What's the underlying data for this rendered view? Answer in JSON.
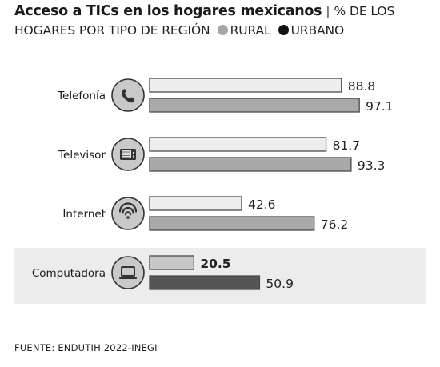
{
  "header": {
    "title": "Acceso a TICs en los hogares mexicanos",
    "separator": "|",
    "subtitle_line1": "% DE LOS",
    "subtitle_line2": "HOGARES POR TIPO DE REGIÓN",
    "legend": [
      {
        "label": "RURAL",
        "color": "#a6a6a6"
      },
      {
        "label": "URBANO",
        "color": "#111111"
      }
    ]
  },
  "chart_data": {
    "type": "bar",
    "orientation": "horizontal",
    "grid": false,
    "legend_position": "top",
    "categories": [
      "Telefonía",
      "Televisor",
      "Internet",
      "Computadora"
    ],
    "icons": [
      "phone-icon",
      "tv-icon",
      "wifi-icon",
      "laptop-icon"
    ],
    "series": [
      {
        "name": "RURAL",
        "values": [
          88.8,
          81.7,
          42.6,
          20.5
        ],
        "labels": [
          "88.8",
          "81.7",
          "42.6",
          "20.5"
        ]
      },
      {
        "name": "URBANO",
        "values": [
          97.1,
          93.3,
          76.2,
          50.9
        ],
        "labels": [
          "97.1",
          "93.3",
          "76.2",
          "50.9"
        ]
      }
    ],
    "highlight_category": "Computadora",
    "colors": {
      "normal_rural": "#ededed",
      "normal_urbano": "#a9a9a9",
      "highlight_rural": "#c8c8c8",
      "highlight_urbano": "#555555",
      "highlight_background": "#ececec",
      "bar_stroke": "#4a4a4a",
      "icon_fill": "#c9c9c9"
    },
    "xlim": [
      0,
      100
    ]
  },
  "footer": {
    "source": "FUENTE: ENDUTIH 2022-INEGI"
  }
}
